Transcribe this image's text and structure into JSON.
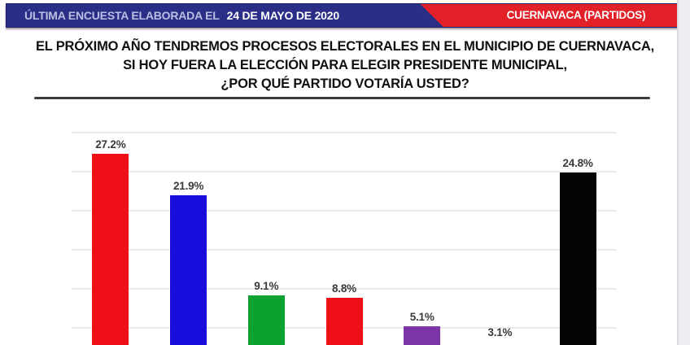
{
  "banner": {
    "left_prefix": "ÚLTIMA ENCUESTA ELABORADA EL",
    "left_date": "24 DE MAYO DE 2020",
    "right_label": "CUERNAVACA (PARTIDOS)",
    "blue_color": "#2b2e86",
    "red_color": "#e22128"
  },
  "title": {
    "line1": "EL PRÓXIMO AÑO TENDREMOS PROCESOS ELECTORALES EN EL MUNICIPIO DE CUERNAVACA,",
    "line2": "SI HOY FUERA LA ELECCIÓN PARA ELEGIR PRESIDENTE MUNICIPAL,",
    "line3": "¿POR QUÉ PARTIDO VOTARÍA USTED?"
  },
  "chart_data": {
    "type": "bar",
    "values": [
      27.2,
      21.9,
      9.1,
      8.8,
      5.1,
      3.1,
      24.8
    ],
    "data_labels": [
      "27.2%",
      "21.9%",
      "9.1%",
      "8.8%",
      "5.1%",
      "3.1%",
      "24.8%"
    ],
    "bar_colors": [
      "#ee1016",
      "#1a0edd",
      "#0ca22f",
      "#ee1016",
      "#7d36a8",
      null,
      "#050505"
    ],
    "ylim": [
      0,
      30
    ],
    "gridline_step": 5,
    "grid": true,
    "legend": "none",
    "x_axis_labels_visible": false
  }
}
